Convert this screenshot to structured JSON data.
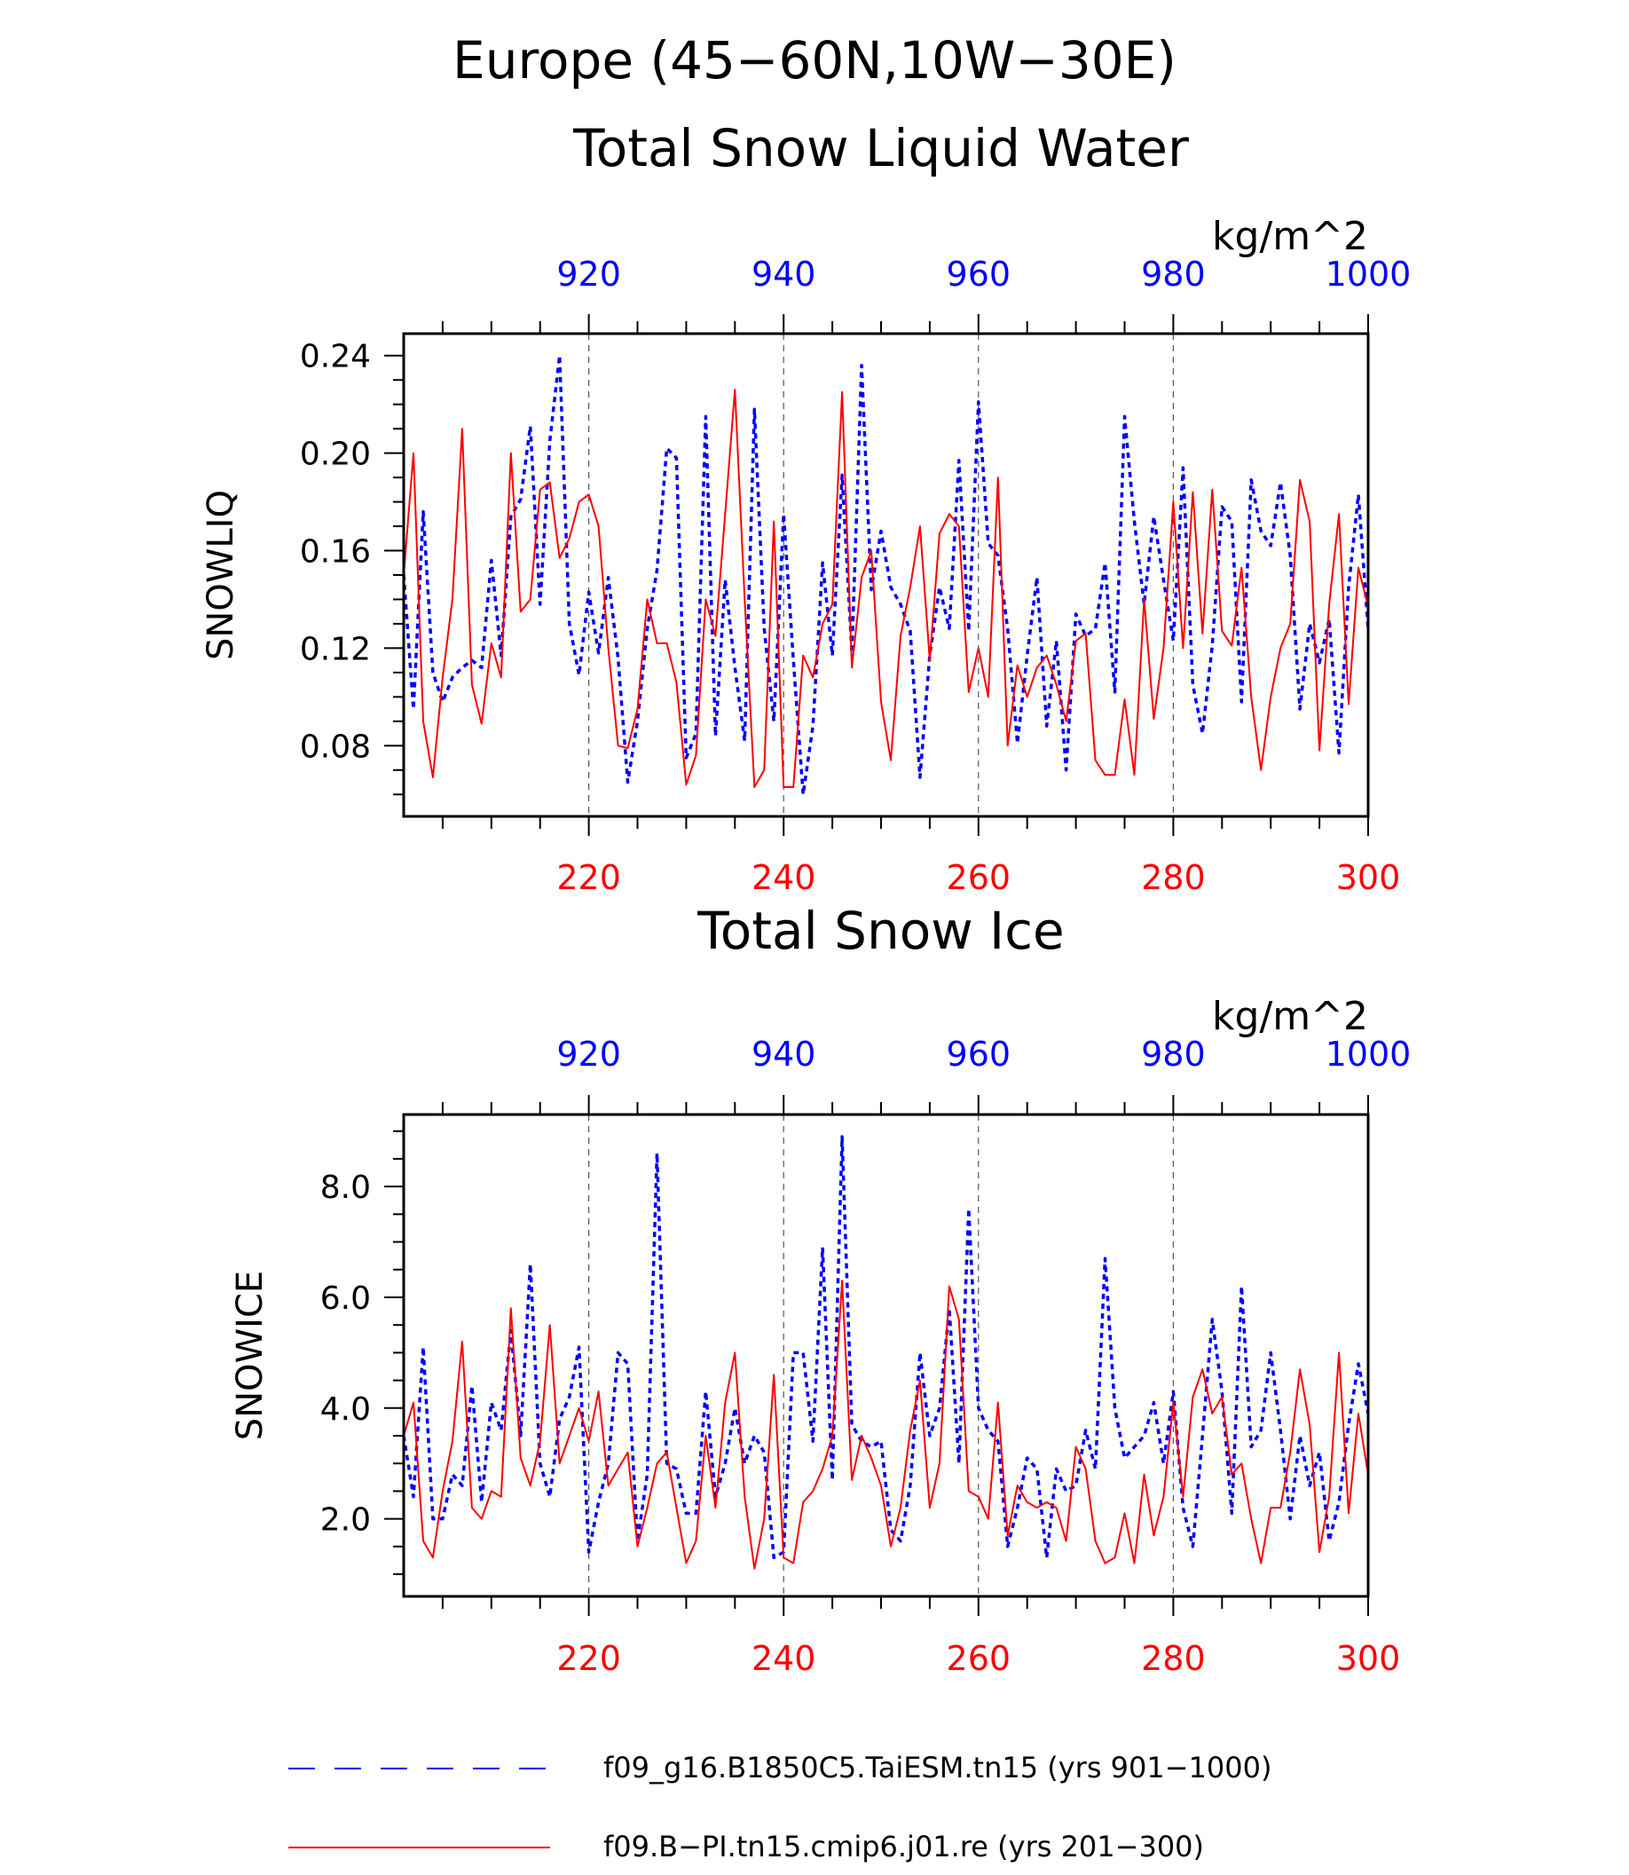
{
  "title": {
    "line1": "Europe (45−60N,10W−30E)"
  },
  "units": "kg/m^2",
  "colors": {
    "series_a": "#0000ff",
    "series_b": "#ff0000",
    "axes": "#000000",
    "grid": "#555555"
  },
  "legend": {
    "position": "bottom",
    "items": [
      {
        "label": "f09_g16.B1850C5.TaiESM.tn15 (yrs 901−1000)",
        "color": "#0000ff",
        "style": "dashed"
      },
      {
        "label": "f09.B−PI.tn15.cmip6.j01.re (yrs 201−300)",
        "color": "#ff0000",
        "style": "solid"
      }
    ]
  },
  "chart_data": [
    {
      "type": "line",
      "title": "Total Snow Liquid Water",
      "ylabel": "SNOWLIQ",
      "units": "kg/m^2",
      "ylim": [
        0.051,
        0.249
      ],
      "yticks": [
        0.08,
        0.12,
        0.16,
        0.2,
        0.24
      ],
      "ytick_labels": [
        "0.08",
        "0.12",
        "0.16",
        "0.20",
        "0.24"
      ],
      "x_bottom": {
        "range": [
          201,
          300
        ],
        "ticks": [
          220,
          240,
          260,
          280,
          300
        ],
        "color": "#ff0000"
      },
      "x_top": {
        "range": [
          901,
          1000
        ],
        "ticks": [
          920,
          940,
          960,
          980,
          1000
        ],
        "color": "#0000ff"
      },
      "grid": "vertical dashed at major ticks",
      "series": [
        {
          "x_axis": "top",
          "color": "#0000ff",
          "style": "dashed",
          "values": [
            0.15,
            0.095,
            0.176,
            0.11,
            0.098,
            0.108,
            0.112,
            0.115,
            0.112,
            0.156,
            0.117,
            0.174,
            0.181,
            0.211,
            0.138,
            0.205,
            0.24,
            0.13,
            0.109,
            0.143,
            0.118,
            0.149,
            0.116,
            0.065,
            0.09,
            0.128,
            0.152,
            0.202,
            0.198,
            0.075,
            0.085,
            0.215,
            0.084,
            0.148,
            0.112,
            0.082,
            0.218,
            0.128,
            0.09,
            0.175,
            0.115,
            0.06,
            0.088,
            0.155,
            0.117,
            0.191,
            0.118,
            0.236,
            0.144,
            0.168,
            0.145,
            0.138,
            0.127,
            0.067,
            0.117,
            0.145,
            0.128,
            0.197,
            0.127,
            0.221,
            0.163,
            0.158,
            0.128,
            0.081,
            0.117,
            0.149,
            0.088,
            0.123,
            0.07,
            0.134,
            0.125,
            0.128,
            0.155,
            0.102,
            0.215,
            0.172,
            0.138,
            0.174,
            0.148,
            0.123,
            0.194,
            0.105,
            0.085,
            0.121,
            0.178,
            0.172,
            0.098,
            0.189,
            0.168,
            0.162,
            0.188,
            0.158,
            0.095,
            0.13,
            0.114,
            0.132,
            0.077,
            0.145,
            0.183,
            0.128
          ]
        },
        {
          "x_axis": "bottom",
          "color": "#ff0000",
          "style": "solid",
          "values": [
            0.15,
            0.2,
            0.09,
            0.067,
            0.108,
            0.14,
            0.21,
            0.105,
            0.089,
            0.122,
            0.108,
            0.2,
            0.135,
            0.14,
            0.185,
            0.188,
            0.157,
            0.165,
            0.18,
            0.183,
            0.17,
            0.12,
            0.08,
            0.079,
            0.095,
            0.14,
            0.122,
            0.122,
            0.106,
            0.064,
            0.076,
            0.14,
            0.125,
            0.175,
            0.226,
            0.14,
            0.063,
            0.07,
            0.172,
            0.063,
            0.063,
            0.117,
            0.108,
            0.13,
            0.138,
            0.225,
            0.112,
            0.149,
            0.16,
            0.098,
            0.074,
            0.125,
            0.145,
            0.17,
            0.115,
            0.167,
            0.175,
            0.17,
            0.102,
            0.12,
            0.1,
            0.19,
            0.08,
            0.113,
            0.1,
            0.112,
            0.117,
            0.105,
            0.09,
            0.123,
            0.126,
            0.074,
            0.068,
            0.068,
            0.099,
            0.068,
            0.14,
            0.091,
            0.12,
            0.18,
            0.12,
            0.184,
            0.126,
            0.185,
            0.127,
            0.121,
            0.153,
            0.1,
            0.07,
            0.1,
            0.12,
            0.13,
            0.189,
            0.172,
            0.078,
            0.138,
            0.175,
            0.097,
            0.153,
            0.137
          ]
        }
      ]
    },
    {
      "type": "line",
      "title": "Total Snow Ice",
      "ylabel": "SNOWICE",
      "units": "kg/m^2",
      "ylim": [
        0.6,
        9.3
      ],
      "yticks": [
        2.0,
        4.0,
        6.0,
        8.0
      ],
      "ytick_labels": [
        "2.0",
        "4.0",
        "6.0",
        "8.0"
      ],
      "x_bottom": {
        "range": [
          201,
          300
        ],
        "ticks": [
          220,
          240,
          260,
          280,
          300
        ],
        "color": "#ff0000"
      },
      "x_top": {
        "range": [
          901,
          1000
        ],
        "ticks": [
          920,
          940,
          960,
          980,
          1000
        ],
        "color": "#0000ff"
      },
      "grid": "vertical dashed at major ticks",
      "series": [
        {
          "x_axis": "top",
          "color": "#0000ff",
          "style": "dashed",
          "values": [
            3.5,
            2.4,
            5.1,
            2.0,
            2.0,
            2.8,
            2.6,
            4.4,
            2.3,
            4.1,
            3.6,
            5.4,
            3.5,
            6.6,
            3.0,
            2.4,
            3.8,
            4.2,
            5.1,
            1.4,
            2.3,
            3.0,
            5.0,
            4.8,
            1.6,
            2.8,
            8.6,
            3.0,
            2.9,
            2.1,
            2.1,
            4.3,
            2.4,
            3.0,
            4.0,
            3.0,
            3.5,
            3.2,
            1.3,
            1.4,
            5.0,
            5.0,
            3.4,
            6.9,
            2.7,
            8.9,
            3.7,
            3.4,
            3.3,
            3.4,
            1.8,
            1.6,
            2.6,
            5.0,
            3.5,
            4.0,
            5.8,
            3.0,
            7.6,
            4.0,
            3.6,
            3.4,
            1.5,
            2.2,
            3.1,
            2.9,
            1.3,
            2.9,
            2.5,
            2.6,
            3.6,
            2.9,
            6.7,
            4.0,
            3.1,
            3.3,
            3.5,
            4.1,
            3.0,
            4.3,
            2.2,
            1.5,
            3.5,
            5.6,
            4.3,
            2.1,
            6.2,
            3.3,
            3.6,
            5.0,
            3.6,
            2.0,
            3.5,
            2.6,
            3.2,
            1.6,
            2.3,
            3.7,
            4.8,
            3.9
          ]
        },
        {
          "x_axis": "bottom",
          "color": "#ff0000",
          "style": "solid",
          "values": [
            3.5,
            4.1,
            1.6,
            1.3,
            2.5,
            3.4,
            5.2,
            2.2,
            2.0,
            2.5,
            2.4,
            5.8,
            3.1,
            2.6,
            3.4,
            5.5,
            3.0,
            3.5,
            4.0,
            3.4,
            4.3,
            2.6,
            2.9,
            3.2,
            1.5,
            2.2,
            3.0,
            3.2,
            2.2,
            1.2,
            1.6,
            3.5,
            2.2,
            4.1,
            5.0,
            2.4,
            1.1,
            2.0,
            4.6,
            1.3,
            1.2,
            2.3,
            2.5,
            2.9,
            3.5,
            6.3,
            2.7,
            3.5,
            3.1,
            2.6,
            1.5,
            2.2,
            3.6,
            4.5,
            2.2,
            3.0,
            6.2,
            5.6,
            2.5,
            2.4,
            2.0,
            4.1,
            1.7,
            2.6,
            2.3,
            2.2,
            2.3,
            2.2,
            1.6,
            3.3,
            2.9,
            1.6,
            1.2,
            1.3,
            2.1,
            1.2,
            2.8,
            1.7,
            2.4,
            4.1,
            2.4,
            4.2,
            4.7,
            3.9,
            4.2,
            2.8,
            3.0,
            2.0,
            1.2,
            2.2,
            2.2,
            3.2,
            4.7,
            3.7,
            1.4,
            2.4,
            5.0,
            2.1,
            3.9,
            2.8
          ]
        }
      ]
    }
  ]
}
